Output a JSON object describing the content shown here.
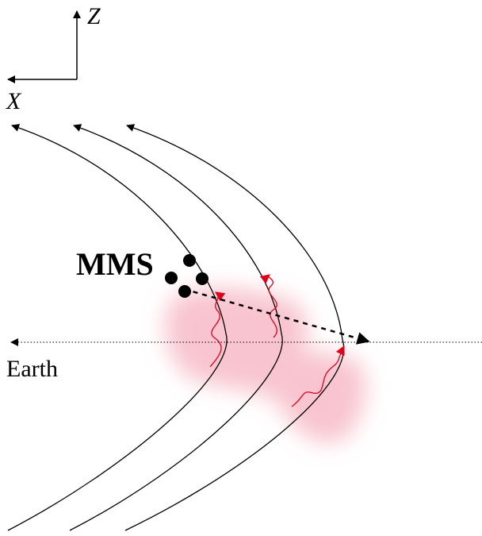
{
  "axes": {
    "z_label": "Z",
    "x_label": "X"
  },
  "labels": {
    "spacecraft": "MMS",
    "earth": "Earth"
  },
  "colors": {
    "field_line": "#000000",
    "wave": "#e0001b",
    "region": "#f4a5b6",
    "spacecraft": "#000000"
  },
  "elements": {
    "field_lines": 3,
    "spacecraft_dots": 4,
    "waves": 3
  }
}
